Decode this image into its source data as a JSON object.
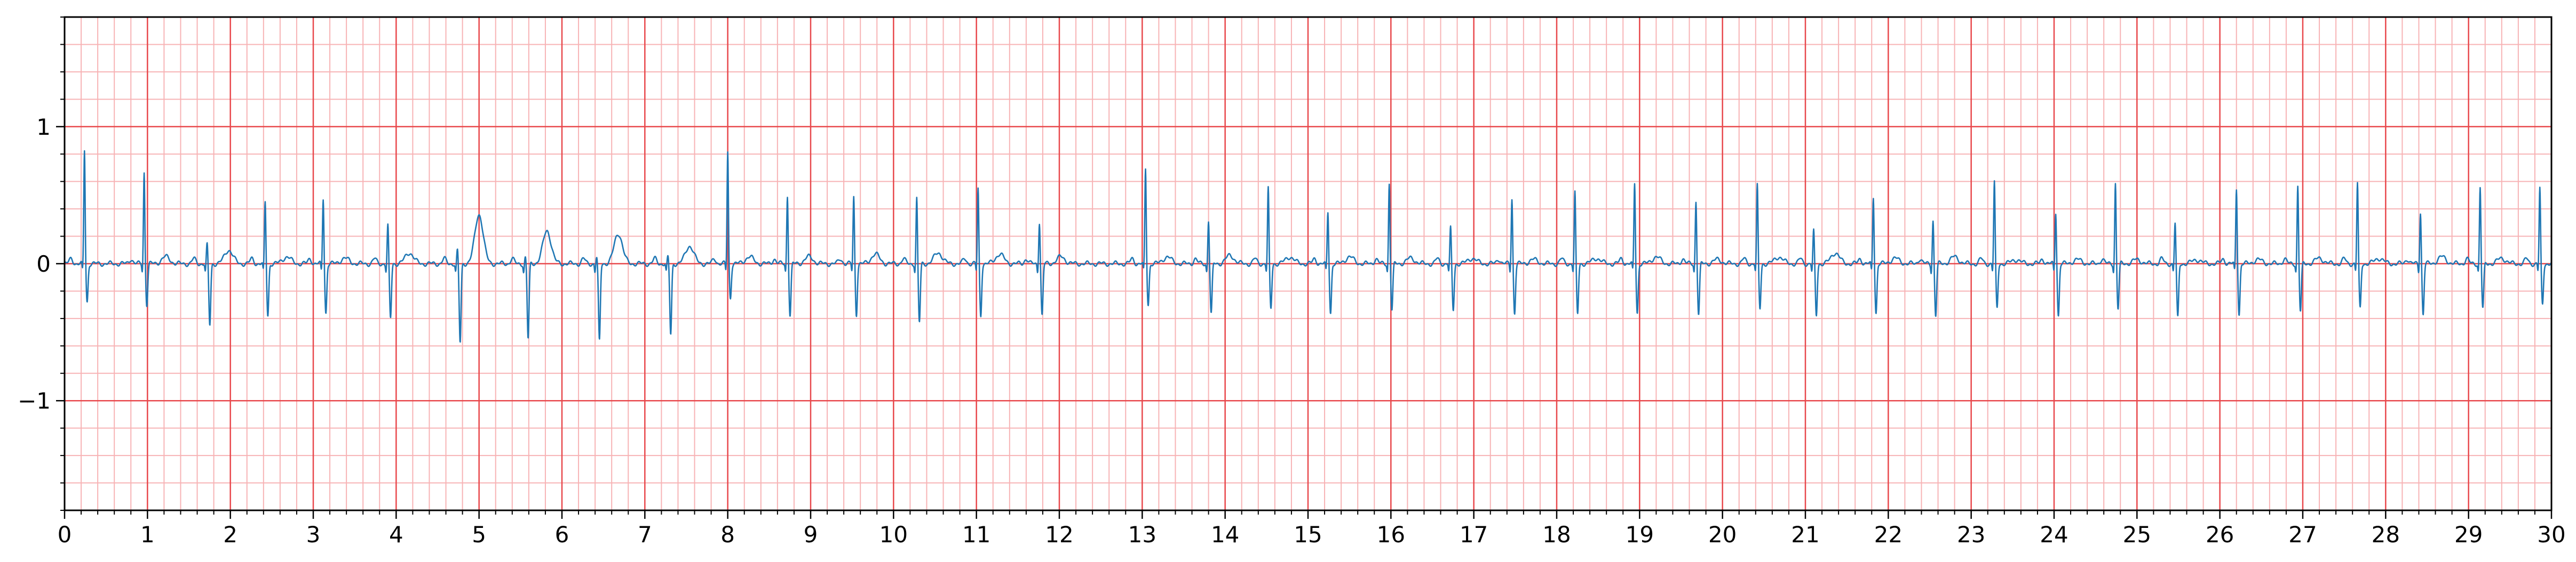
{
  "chart_data": {
    "type": "line",
    "title": "",
    "xlabel": "",
    "ylabel": "",
    "xlim": [
      0,
      30
    ],
    "ylim": [
      -1.8,
      1.8
    ],
    "x_ticks": [
      0,
      1,
      2,
      3,
      4,
      5,
      6,
      7,
      8,
      9,
      10,
      11,
      12,
      13,
      14,
      15,
      16,
      17,
      18,
      19,
      20,
      21,
      22,
      23,
      24,
      25,
      26,
      27,
      28,
      29,
      30
    ],
    "x_tick_labels": [
      "0",
      "1",
      "2",
      "3",
      "4",
      "5",
      "6",
      "7",
      "8",
      "9",
      "10",
      "11",
      "12",
      "13",
      "14",
      "15",
      "16",
      "17",
      "18",
      "19",
      "20",
      "21",
      "22",
      "23",
      "24",
      "25",
      "26",
      "27",
      "28",
      "29",
      "30"
    ],
    "y_ticks": [
      -1,
      0,
      1
    ],
    "y_tick_labels": [
      "−1",
      "0",
      "1"
    ],
    "grid": {
      "major_x_step": 1,
      "major_y_step": 1,
      "minor_x_step": 0.2,
      "minor_y_step": 0.2,
      "major_color": "#e8484c",
      "minor_color": "#f7b3b5"
    },
    "line_color": "#1f77b4",
    "series": [
      {
        "beats": [
          {
            "t": 0.24,
            "r": 0.83,
            "s": -0.28,
            "tw": 0.0
          },
          {
            "t": 0.96,
            "r": 0.67,
            "s": -0.3,
            "tw": 0.05
          },
          {
            "t": 1.72,
            "r": 0.14,
            "s": -0.45,
            "tw": 0.1
          },
          {
            "t": 2.42,
            "r": 0.45,
            "s": -0.38,
            "tw": 0.05
          },
          {
            "t": 3.12,
            "r": 0.48,
            "s": -0.36,
            "tw": 0.04
          },
          {
            "t": 3.9,
            "r": 0.28,
            "s": -0.4,
            "tw": 0.08
          },
          {
            "t": 4.74,
            "r": 0.1,
            "s": -0.58,
            "tw": 0.36
          },
          {
            "t": 5.56,
            "r": 0.05,
            "s": -0.55,
            "tw": 0.24
          },
          {
            "t": 6.42,
            "r": 0.05,
            "s": -0.57,
            "tw": 0.22
          },
          {
            "t": 7.28,
            "r": 0.05,
            "s": -0.52,
            "tw": 0.13
          },
          {
            "t": 8.0,
            "r": 0.82,
            "s": -0.25,
            "tw": 0.05
          },
          {
            "t": 8.72,
            "r": 0.5,
            "s": -0.38,
            "tw": 0.05
          },
          {
            "t": 9.52,
            "r": 0.49,
            "s": -0.37,
            "tw": 0.07
          },
          {
            "t": 10.28,
            "r": 0.48,
            "s": -0.43,
            "tw": 0.08
          },
          {
            "t": 11.02,
            "r": 0.55,
            "s": -0.38,
            "tw": 0.07
          },
          {
            "t": 11.76,
            "r": 0.31,
            "s": -0.38,
            "tw": 0.05
          },
          {
            "t": 13.04,
            "r": 0.69,
            "s": -0.3,
            "tw": 0.05
          },
          {
            "t": 13.8,
            "r": 0.32,
            "s": -0.37,
            "tw": 0.06
          },
          {
            "t": 14.52,
            "r": 0.55,
            "s": -0.33,
            "tw": 0.05
          },
          {
            "t": 15.24,
            "r": 0.38,
            "s": -0.36,
            "tw": 0.05
          },
          {
            "t": 15.98,
            "r": 0.59,
            "s": -0.34,
            "tw": 0.04
          },
          {
            "t": 16.72,
            "r": 0.26,
            "s": -0.34,
            "tw": 0.04
          },
          {
            "t": 17.46,
            "r": 0.48,
            "s": -0.36,
            "tw": 0.03
          },
          {
            "t": 18.22,
            "r": 0.52,
            "s": -0.37,
            "tw": 0.04
          },
          {
            "t": 18.94,
            "r": 0.59,
            "s": -0.36,
            "tw": 0.05
          },
          {
            "t": 19.68,
            "r": 0.46,
            "s": -0.37,
            "tw": 0.03
          },
          {
            "t": 20.42,
            "r": 0.57,
            "s": -0.33,
            "tw": 0.05
          },
          {
            "t": 21.1,
            "r": 0.24,
            "s": -0.38,
            "tw": 0.08
          },
          {
            "t": 21.82,
            "r": 0.49,
            "s": -0.36,
            "tw": 0.04
          },
          {
            "t": 22.54,
            "r": 0.32,
            "s": -0.38,
            "tw": 0.05
          },
          {
            "t": 23.28,
            "r": 0.6,
            "s": -0.33,
            "tw": 0.03
          },
          {
            "t": 24.02,
            "r": 0.38,
            "s": -0.38,
            "tw": 0.03
          },
          {
            "t": 24.74,
            "r": 0.59,
            "s": -0.33,
            "tw": 0.03
          },
          {
            "t": 25.46,
            "r": 0.3,
            "s": -0.4,
            "tw": 0.03
          },
          {
            "t": 26.2,
            "r": 0.55,
            "s": -0.37,
            "tw": 0.03
          },
          {
            "t": 26.94,
            "r": 0.57,
            "s": -0.35,
            "tw": 0.04
          },
          {
            "t": 27.66,
            "r": 0.59,
            "s": -0.33,
            "tw": 0.04
          },
          {
            "t": 28.42,
            "r": 0.38,
            "s": -0.37,
            "tw": 0.05
          },
          {
            "t": 29.14,
            "r": 0.56,
            "s": -0.33,
            "tw": 0.04
          },
          {
            "t": 29.86,
            "r": 0.55,
            "s": -0.3,
            "tw": 0.03
          }
        ]
      }
    ]
  }
}
